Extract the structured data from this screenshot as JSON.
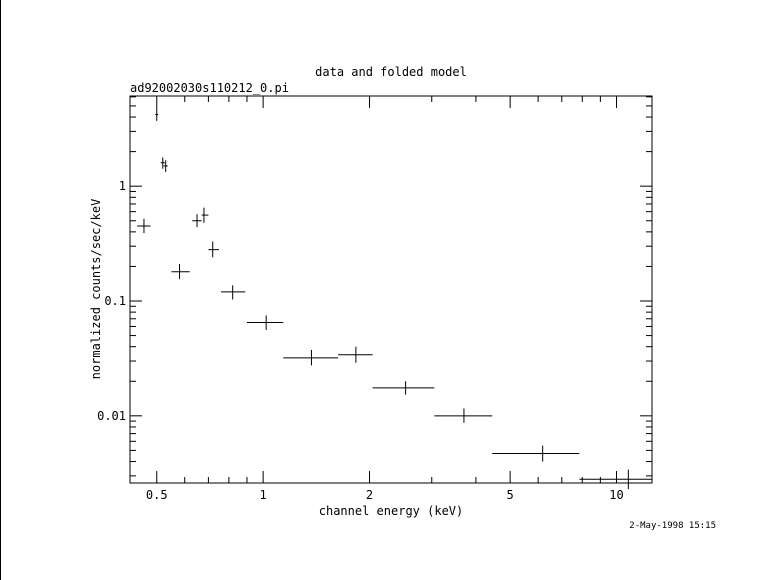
{
  "chart_data": {
    "type": "scatter",
    "title": "data and folded model",
    "subtitle": "ad92002030s110212_0.pi",
    "xlabel": "channel energy (keV)",
    "ylabel": "normalized counts/sec/keV",
    "timestamp": "2-May-1998 15:15",
    "x_scale": "log",
    "y_scale": "log",
    "xlim": [
      0.42,
      12.6
    ],
    "ylim": [
      0.0026,
      6.1
    ],
    "grid": false,
    "legend": "none",
    "x_ticks": [
      {
        "value": 0.5,
        "label": "0.5"
      },
      {
        "value": 1,
        "label": "1"
      },
      {
        "value": 2,
        "label": "2"
      },
      {
        "value": 5,
        "label": "5"
      },
      {
        "value": 10,
        "label": "10"
      }
    ],
    "y_ticks": [
      {
        "value": 0.01,
        "label": "0.01"
      },
      {
        "value": 0.1,
        "label": "0.1"
      },
      {
        "value": 1,
        "label": "1"
      }
    ],
    "points": [
      {
        "x": 0.46,
        "xlo": 0.44,
        "xhi": 0.48,
        "y": 0.45,
        "ylo": 0.39,
        "yhi": 0.52
      },
      {
        "x": 0.5,
        "xlo": 0.495,
        "xhi": 0.505,
        "y": 4.2,
        "ylo": 3.7,
        "yhi": 4.8
      },
      {
        "x": 0.52,
        "xlo": 0.513,
        "xhi": 0.527,
        "y": 1.6,
        "ylo": 1.42,
        "yhi": 1.78
      },
      {
        "x": 0.53,
        "xlo": 0.523,
        "xhi": 0.537,
        "y": 1.5,
        "ylo": 1.33,
        "yhi": 1.68
      },
      {
        "x": 0.58,
        "xlo": 0.55,
        "xhi": 0.62,
        "y": 0.18,
        "ylo": 0.155,
        "yhi": 0.21
      },
      {
        "x": 0.65,
        "xlo": 0.63,
        "xhi": 0.67,
        "y": 0.5,
        "ylo": 0.44,
        "yhi": 0.57
      },
      {
        "x": 0.68,
        "xlo": 0.67,
        "xhi": 0.7,
        "y": 0.56,
        "ylo": 0.48,
        "yhi": 0.65
      },
      {
        "x": 0.72,
        "xlo": 0.7,
        "xhi": 0.75,
        "y": 0.28,
        "ylo": 0.24,
        "yhi": 0.33
      },
      {
        "x": 0.82,
        "xlo": 0.76,
        "xhi": 0.89,
        "y": 0.12,
        "ylo": 0.103,
        "yhi": 0.137
      },
      {
        "x": 1.02,
        "xlo": 0.9,
        "xhi": 1.14,
        "y": 0.065,
        "ylo": 0.056,
        "yhi": 0.075
      },
      {
        "x": 1.37,
        "xlo": 1.14,
        "xhi": 1.63,
        "y": 0.032,
        "ylo": 0.0275,
        "yhi": 0.0375
      },
      {
        "x": 1.83,
        "xlo": 1.63,
        "xhi": 2.04,
        "y": 0.034,
        "ylo": 0.029,
        "yhi": 0.04
      },
      {
        "x": 2.53,
        "xlo": 2.04,
        "xhi": 3.05,
        "y": 0.0175,
        "ylo": 0.0153,
        "yhi": 0.02
      },
      {
        "x": 3.7,
        "xlo": 3.05,
        "xhi": 4.45,
        "y": 0.01,
        "ylo": 0.0087,
        "yhi": 0.0116
      },
      {
        "x": 6.18,
        "xlo": 4.45,
        "xhi": 7.85,
        "y": 0.0047,
        "ylo": 0.004,
        "yhi": 0.0055
      },
      {
        "x": 10.8,
        "xlo": 7.85,
        "xhi": 12.6,
        "y": 0.0028,
        "ylo": 0.0023,
        "yhi": 0.0034
      }
    ]
  }
}
